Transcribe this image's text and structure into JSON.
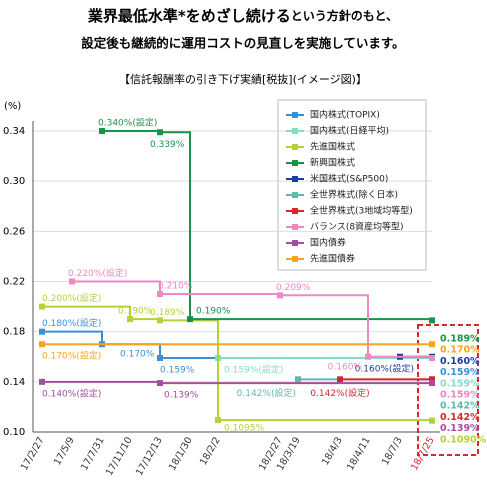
{
  "chart_data": {
    "type": "step-line",
    "title_parts": [
      "業界最低水準*をめざし続ける",
      "という方針のもと、",
      "設定後も継続的に運用コストの見直しを実施しています。"
    ],
    "subtitle": "【信託報酬率の引き下げ実績[税抜](イメージ図)】",
    "y_label": "(%)",
    "categories": [
      "17/2/27",
      "17/5/9",
      "17/7/31",
      "17/11/10",
      "17/12/13",
      "18/1/30",
      "18/2/2",
      "18/2/27",
      "18/3/19",
      "18/4/3",
      "18/4/11",
      "18/7/3",
      "18/7/25"
    ],
    "ylim": [
      0.1,
      0.34
    ],
    "yticks": [
      {
        "value": 0.1,
        "label": "0.10"
      },
      0.14,
      0.18,
      0.22,
      0.26,
      {
        "value": 0.3,
        "label": "0.30"
      },
      0.34
    ],
    "grid": true,
    "series": [
      {
        "name": "国内株式(TOPIX)",
        "color": "#3a90d8",
        "values": [
          0.18,
          0.18,
          0.17,
          0.17,
          0.159,
          0.159,
          0.159,
          0.159,
          0.159,
          0.159,
          0.159,
          0.159,
          0.159
        ],
        "value_labels": [
          "0.180%(設定)",
          null,
          "0.170%",
          null,
          "0.159%",
          null,
          null,
          null,
          null,
          null,
          null,
          null,
          "0.159%"
        ]
      },
      {
        "name": "国内株式(日経平均)",
        "color": "#86dcc6",
        "values": [
          null,
          null,
          null,
          null,
          null,
          null,
          0.159,
          0.159,
          0.159,
          0.159,
          0.159,
          0.159,
          0.159
        ],
        "value_labels": [
          null,
          null,
          null,
          null,
          null,
          null,
          "0.159%(設定)",
          null,
          null,
          null,
          null,
          null,
          "0.159%"
        ]
      },
      {
        "name": "先進国株式",
        "color": "#b2d235",
        "values": [
          0.2,
          0.2,
          0.2,
          0.19,
          0.189,
          0.189,
          0.1095,
          0.1095,
          0.1095,
          0.1095,
          0.1095,
          0.1095,
          0.109
        ],
        "value_labels": [
          "0.200%(設定)",
          null,
          null,
          "0.190%",
          "0.189%",
          null,
          "0.1095%",
          null,
          null,
          null,
          null,
          null,
          "0.1090%"
        ]
      },
      {
        "name": "新興国株式",
        "color": "#19934a",
        "values": [
          null,
          null,
          0.34,
          0.34,
          0.339,
          0.19,
          0.19,
          0.19,
          0.19,
          0.19,
          0.19,
          0.19,
          0.189
        ],
        "value_labels": [
          null,
          null,
          "0.340%(設定)",
          null,
          "0.339%",
          "0.190%",
          null,
          null,
          null,
          null,
          null,
          null,
          "0.189%"
        ]
      },
      {
        "name": "米国株式(S&P500)",
        "color": "#1c3da0",
        "values": [
          null,
          null,
          null,
          null,
          null,
          null,
          null,
          null,
          null,
          null,
          null,
          0.16,
          0.16
        ],
        "value_labels": [
          null,
          null,
          null,
          null,
          null,
          null,
          null,
          null,
          null,
          null,
          null,
          "0.160%(設定)",
          "0.160%"
        ]
      },
      {
        "name": "全世界株式(除く日本)",
        "color": "#5fb9ac",
        "values": [
          null,
          null,
          null,
          null,
          null,
          null,
          null,
          null,
          0.142,
          0.142,
          0.142,
          0.142,
          0.142
        ],
        "value_labels": [
          null,
          null,
          null,
          null,
          null,
          null,
          null,
          null,
          "0.142%(設定)",
          null,
          null,
          null,
          "0.142%"
        ]
      },
      {
        "name": "全世界株式(3地域均等型)",
        "color": "#d7262e",
        "values": [
          null,
          null,
          null,
          null,
          null,
          null,
          null,
          null,
          null,
          0.142,
          0.142,
          0.142,
          0.142
        ],
        "value_labels": [
          null,
          null,
          null,
          null,
          null,
          null,
          null,
          null,
          null,
          "0.142%(設定)",
          null,
          null,
          "0.142%"
        ]
      },
      {
        "name": "バランス(8資産均等型)",
        "color": "#ec88c3",
        "values": [
          null,
          0.22,
          0.22,
          0.22,
          0.21,
          0.21,
          0.21,
          0.209,
          0.209,
          0.209,
          0.16,
          0.16,
          0.159
        ],
        "value_labels": [
          null,
          "0.220%(設定)",
          null,
          null,
          "0.210%",
          null,
          null,
          "0.209%",
          null,
          null,
          "0.160%",
          null,
          "0.159%"
        ]
      },
      {
        "name": "国内債券",
        "color": "#a34f9f",
        "values": [
          0.14,
          0.14,
          0.14,
          0.14,
          0.139,
          0.139,
          0.139,
          0.139,
          0.139,
          0.139,
          0.139,
          0.139,
          0.139
        ],
        "value_labels": [
          "0.140%(設定)",
          null,
          null,
          null,
          "0.139%",
          null,
          null,
          null,
          null,
          null,
          null,
          null,
          "0.139%"
        ]
      },
      {
        "name": "先進国債券",
        "color": "#f6a61d",
        "values": [
          0.17,
          0.17,
          0.17,
          0.17,
          0.17,
          0.17,
          0.17,
          0.17,
          0.17,
          0.17,
          0.17,
          0.17,
          0.17
        ],
        "value_labels": [
          "0.170%(設定)",
          null,
          null,
          null,
          null,
          null,
          null,
          null,
          null,
          null,
          null,
          null,
          "0.170%"
        ]
      }
    ]
  }
}
